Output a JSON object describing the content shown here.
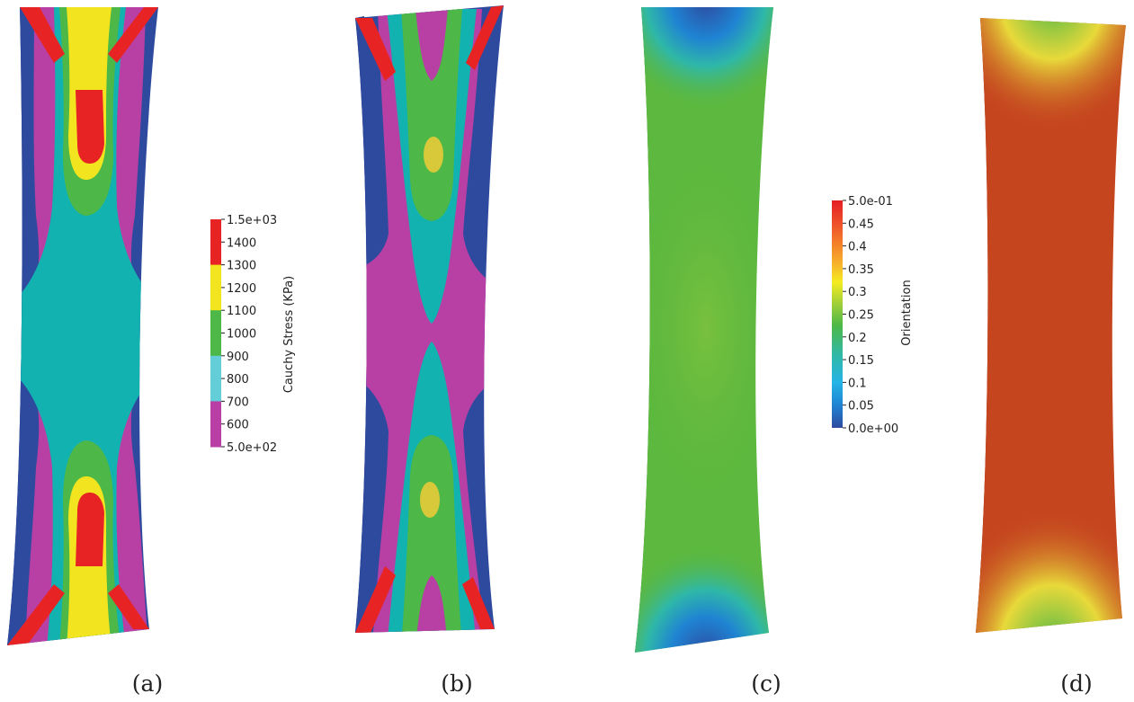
{
  "panels": [
    {
      "id": "a",
      "caption": "(a)"
    },
    {
      "id": "b",
      "caption": "(b)"
    },
    {
      "id": "c",
      "caption": "(c)"
    },
    {
      "id": "d",
      "caption": "(d)"
    }
  ],
  "stress_legend": {
    "title": "Cauchy Stress (KPa)",
    "ticks": [
      "1.5e+03",
      "1400",
      "1300",
      "1200",
      "1100",
      "1000",
      "900",
      "800",
      "700",
      "600",
      "5.0e+02"
    ],
    "band_colors": [
      "#e82323",
      "#e82323",
      "#f2e51f",
      "#f2e51f",
      "#4db847",
      "#4db847",
      "#63cdd8",
      "#63cdd8",
      "#b83fa3",
      "#b83fa3",
      "#2e4a9e"
    ]
  },
  "orientation_legend": {
    "title": "Orientation",
    "ticks": [
      "5.0e-01",
      "0.45",
      "0.4",
      "0.35",
      "0.3",
      "0.25",
      "0.2",
      "0.15",
      "0.1",
      "0.05",
      "0.0e+00"
    ],
    "gradient_colors": [
      "#e41e26",
      "#f0592a",
      "#f7b32b",
      "#f4ec1f",
      "#a4d038",
      "#4db847",
      "#2fb8a8",
      "#25b4e5",
      "#1f83d3",
      "#2e4a9e"
    ]
  },
  "colors": {
    "dark_blue": "#2e4a9e",
    "magenta": "#b83fa3",
    "cyan": "#63cdd8",
    "teal": "#12b2b0",
    "green": "#4db847",
    "yellow": "#f2e51f",
    "red": "#e82323",
    "green_field": "#5cb83e",
    "orange_field": "#c5451f"
  }
}
